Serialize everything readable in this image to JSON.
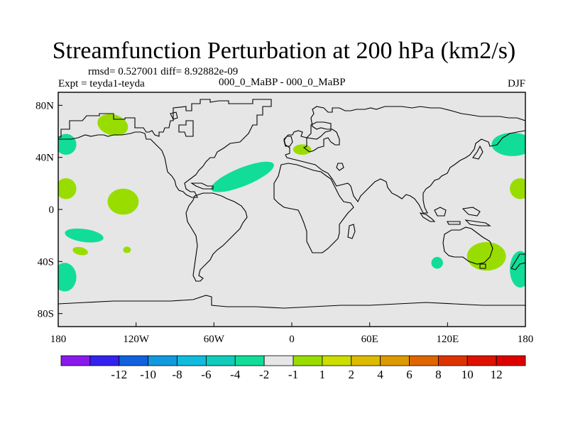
{
  "title": "Streamfunction Perturbation at 200 hPa (km2/s)",
  "stats_line": "rmsd= 0.527001 diff= 8.92882e-09",
  "experiment": "Expt = teyda1-teyda",
  "case_label": "000_0_MaBP - 000_0_MaBP",
  "season": "DJF",
  "map": {
    "background_color": "#e6e6e6",
    "lon_ticks": [
      "180",
      "120W",
      "60W",
      "0",
      "60E",
      "120E",
      "180"
    ],
    "lon_values": [
      -180,
      -120,
      -60,
      0,
      60,
      120,
      180
    ],
    "lat_ticks": [
      "80N",
      "40N",
      "0",
      "40S",
      "80S"
    ],
    "lat_values": [
      80,
      40,
      0,
      -40,
      -80
    ],
    "lat_range": [
      -90,
      90
    ],
    "lon_range": [
      -180,
      180
    ]
  },
  "anomalies": [
    {
      "lon": -138,
      "lat": 65,
      "lon_radius": 12,
      "lat_radius": 8,
      "rotation": 15,
      "color": "#99dd00",
      "category": "1 to 2"
    },
    {
      "lon": -174,
      "lat": 50,
      "lon_radius": 8,
      "lat_radius": 8,
      "rotation": 0,
      "color": "#11dd99",
      "category": "-2 to -1"
    },
    {
      "lon": -174,
      "lat": 16,
      "lon_radius": 8,
      "lat_radius": 8,
      "rotation": 0,
      "color": "#99dd00",
      "category": "1 to 2"
    },
    {
      "lon": -130,
      "lat": 6,
      "lon_radius": 12,
      "lat_radius": 10,
      "rotation": 0,
      "color": "#99dd00",
      "category": "1 to 2"
    },
    {
      "lon": -160,
      "lat": -20,
      "lon_radius": 15,
      "lat_radius": 5,
      "rotation": 8,
      "color": "#11dd99",
      "category": "-2 to -1"
    },
    {
      "lon": -163,
      "lat": -32,
      "lon_radius": 6,
      "lat_radius": 3,
      "rotation": 12,
      "color": "#99dd00",
      "category": "1 to 2"
    },
    {
      "lon": -127,
      "lat": -31,
      "lon_radius": 3,
      "lat_radius": 2.5,
      "rotation": 0,
      "color": "#99dd00",
      "category": "1 to 2"
    },
    {
      "lon": -175,
      "lat": -52,
      "lon_radius": 9,
      "lat_radius": 11,
      "rotation": 0,
      "color": "#11dd99",
      "category": "-2 to -1"
    },
    {
      "lon": -38,
      "lat": 25,
      "lon_radius": 26,
      "lat_radius": 7,
      "rotation": -22,
      "color": "#11dd99",
      "category": "-2 to -1"
    },
    {
      "lon": 8,
      "lat": 46,
      "lon_radius": 7,
      "lat_radius": 4,
      "rotation": 0,
      "color": "#99dd00",
      "category": "1 to 2"
    },
    {
      "lon": 170,
      "lat": 50,
      "lon_radius": 16,
      "lat_radius": 9,
      "rotation": 0,
      "color": "#11dd99",
      "category": "-2 to -1"
    },
    {
      "lon": 176,
      "lat": 16,
      "lon_radius": 8,
      "lat_radius": 8,
      "rotation": 0,
      "color": "#99dd00",
      "category": "1 to 2"
    },
    {
      "lon": 112,
      "lat": -41,
      "lon_radius": 4.5,
      "lat_radius": 4.5,
      "rotation": 0,
      "color": "#11dd99",
      "category": "-2 to -1"
    },
    {
      "lon": 150,
      "lat": -36,
      "lon_radius": 15,
      "lat_radius": 11,
      "rotation": 0,
      "color": "#99dd00",
      "category": "1 to 2"
    },
    {
      "lon": 176,
      "lat": -46,
      "lon_radius": 8,
      "lat_radius": 14,
      "rotation": 0,
      "color": "#11dd99",
      "category": "-2 to -1"
    }
  ],
  "colorbar": {
    "colors": [
      "#8a1aeb",
      "#3322ee",
      "#1160dd",
      "#1199dd",
      "#11bbdd",
      "#11ccbb",
      "#11dd99",
      "#e6e6e6",
      "#99dd00",
      "#ccdd00",
      "#ddbb00",
      "#dd9900",
      "#dd6600",
      "#dd3300",
      "#dd1100",
      "#dd0000"
    ],
    "labels": [
      "-12",
      "-10",
      "-8",
      "-6",
      "-4",
      "-2",
      "-1",
      "1",
      "2",
      "4",
      "6",
      "8",
      "10",
      "12"
    ]
  }
}
